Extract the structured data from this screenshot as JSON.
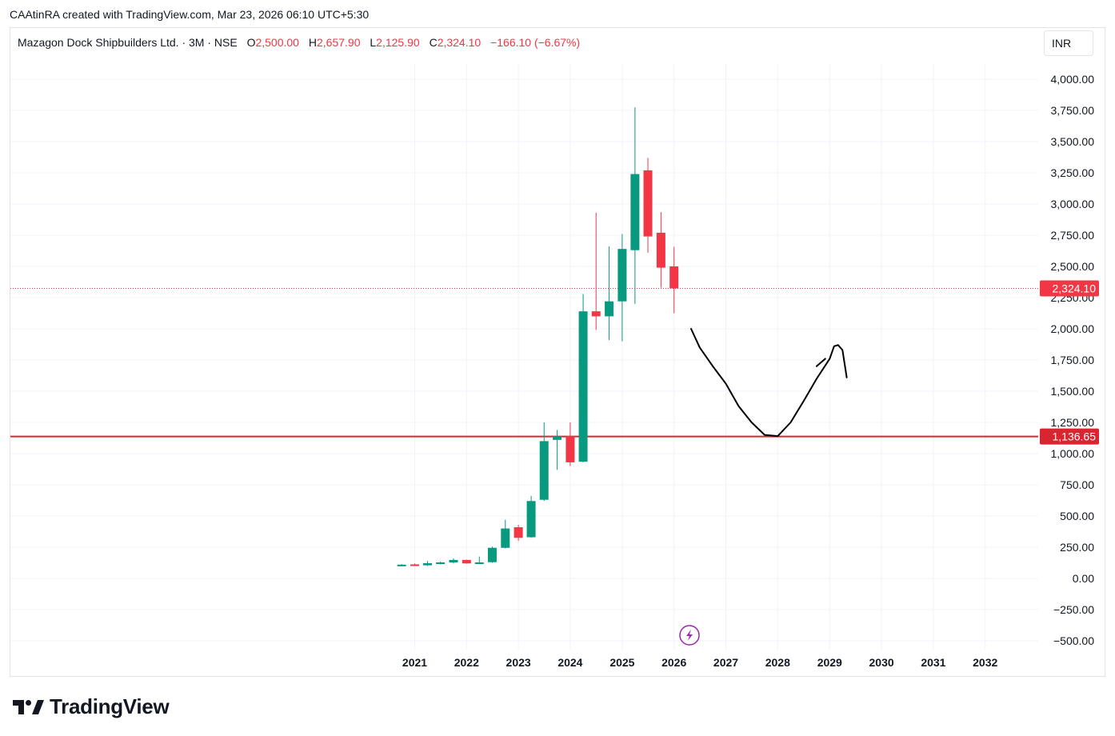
{
  "header": {
    "credit": "CAAtinRA created with TradingView.com, Mar 23, 2026 06:10 UTC+5:30"
  },
  "legend": {
    "symbol": "Mazagon Dock Shipbuilders Ltd. · 3M · NSE",
    "o_label": "O",
    "o_value": "2,500.00",
    "h_label": "H",
    "h_value": "2,657.90",
    "l_label": "L",
    "l_value": "2,125.90",
    "c_label": "C",
    "c_value": "2,324.10",
    "change": "−166.10 (−6.67%)"
  },
  "currency": "INR",
  "brand": {
    "name": "TradingView",
    "logo": "tradingview-logo"
  },
  "colors": {
    "up": "#089981",
    "down": "#f23645",
    "level_line": "#d9252f",
    "grid": "#f0f3fa",
    "drawing": "#000000",
    "flash_icon": "#9c27b0"
  },
  "chart_data": {
    "type": "candlestick",
    "ylim": [
      -550,
      4200
    ],
    "y_ticks": [
      -500,
      -250,
      0,
      250,
      500,
      750,
      1000,
      1250,
      1500,
      1750,
      2000,
      2250,
      2500,
      2750,
      3000,
      3250,
      3500,
      3750,
      4000
    ],
    "y_tick_labels": [
      "−500.00",
      "−250.00",
      "0.00",
      "250.00",
      "500.00",
      "750.00",
      "1,000.00",
      "1,250.00",
      "1,500.00",
      "1,750.00",
      "2,000.00",
      "2,250.00",
      "2,500.00",
      "2,750.00",
      "3,000.00",
      "3,250.00",
      "3,500.00",
      "3,750.00",
      "4,000.00"
    ],
    "x_range": [
      "2020-05-01",
      "2033-05-01"
    ],
    "x_tick_labels": [
      "2021",
      "2022",
      "2023",
      "2024",
      "2025",
      "2026",
      "2027",
      "2028",
      "2029",
      "2030",
      "2031",
      "2032"
    ],
    "x_tick_dates": [
      "2021-01-01",
      "2022-01-01",
      "2023-01-01",
      "2024-01-01",
      "2025-01-01",
      "2026-01-01",
      "2027-01-01",
      "2028-01-01",
      "2029-01-01",
      "2030-01-01",
      "2031-01-01",
      "2032-01-01"
    ],
    "candles": [
      {
        "date": "2020-10-01",
        "o": 108,
        "h": 115,
        "l": 100,
        "c": 110
      },
      {
        "date": "2021-01-01",
        "o": 112,
        "h": 120,
        "l": 100,
        "c": 105
      },
      {
        "date": "2021-04-01",
        "o": 105,
        "h": 140,
        "l": 100,
        "c": 122
      },
      {
        "date": "2021-07-01",
        "o": 120,
        "h": 135,
        "l": 112,
        "c": 128
      },
      {
        "date": "2021-10-01",
        "o": 128,
        "h": 160,
        "l": 120,
        "c": 148
      },
      {
        "date": "2022-01-01",
        "o": 148,
        "h": 150,
        "l": 118,
        "c": 120
      },
      {
        "date": "2022-04-01",
        "o": 122,
        "h": 175,
        "l": 118,
        "c": 128
      },
      {
        "date": "2022-07-01",
        "o": 130,
        "h": 255,
        "l": 125,
        "c": 245
      },
      {
        "date": "2022-10-01",
        "o": 245,
        "h": 470,
        "l": 240,
        "c": 400
      },
      {
        "date": "2023-01-01",
        "o": 410,
        "h": 430,
        "l": 300,
        "c": 325
      },
      {
        "date": "2023-04-01",
        "o": 330,
        "h": 660,
        "l": 325,
        "c": 620
      },
      {
        "date": "2023-07-01",
        "o": 630,
        "h": 1250,
        "l": 620,
        "c": 1100
      },
      {
        "date": "2023-10-01",
        "o": 1110,
        "h": 1190,
        "l": 870,
        "c": 1140
      },
      {
        "date": "2024-01-01",
        "o": 1140,
        "h": 1250,
        "l": 900,
        "c": 930
      },
      {
        "date": "2024-04-01",
        "o": 935,
        "h": 2280,
        "l": 930,
        "c": 2140
      },
      {
        "date": "2024-07-01",
        "o": 2140,
        "h": 2930,
        "l": 1990,
        "c": 2100
      },
      {
        "date": "2024-10-01",
        "o": 2100,
        "h": 2660,
        "l": 1910,
        "c": 2220
      },
      {
        "date": "2025-01-01",
        "o": 2220,
        "h": 2760,
        "l": 1900,
        "c": 2640
      },
      {
        "date": "2025-04-01",
        "o": 2630,
        "h": 3775,
        "l": 2200,
        "c": 3240
      },
      {
        "date": "2025-07-01",
        "o": 3270,
        "h": 3370,
        "l": 2610,
        "c": 2740
      },
      {
        "date": "2025-10-01",
        "o": 2770,
        "h": 2935,
        "l": 2330,
        "c": 2490
      },
      {
        "date": "2026-01-01",
        "o": 2500,
        "h": 2657.9,
        "l": 2125.9,
        "c": 2324.1
      }
    ],
    "price_lines": [
      {
        "value": 2324.1,
        "label": "2,324.10",
        "style": "dotted",
        "color": "#f23645"
      },
      {
        "value": 1136.65,
        "label": "1,136.65",
        "style": "solid",
        "color": "#d9252f"
      }
    ],
    "annotation_path": [
      [
        "2026-05-01",
        2000
      ],
      [
        "2026-07-01",
        1850
      ],
      [
        "2026-10-01",
        1700
      ],
      [
        "2027-01-01",
        1560
      ],
      [
        "2027-04-01",
        1380
      ],
      [
        "2027-07-01",
        1250
      ],
      [
        "2027-10-01",
        1150
      ],
      [
        "2028-01-01",
        1140
      ],
      [
        "2028-04-01",
        1250
      ],
      [
        "2028-07-01",
        1420
      ],
      [
        "2028-10-01",
        1600
      ],
      [
        "2029-01-01",
        1760
      ],
      [
        "2029-02-01",
        1860
      ],
      [
        "2029-03-01",
        1870
      ],
      [
        "2029-04-01",
        1830
      ],
      [
        "2029-05-01",
        1610
      ]
    ],
    "annotation_stroke": [
      [
        "2028-10-01",
        1700
      ],
      [
        "2028-12-01",
        1760
      ]
    ]
  }
}
